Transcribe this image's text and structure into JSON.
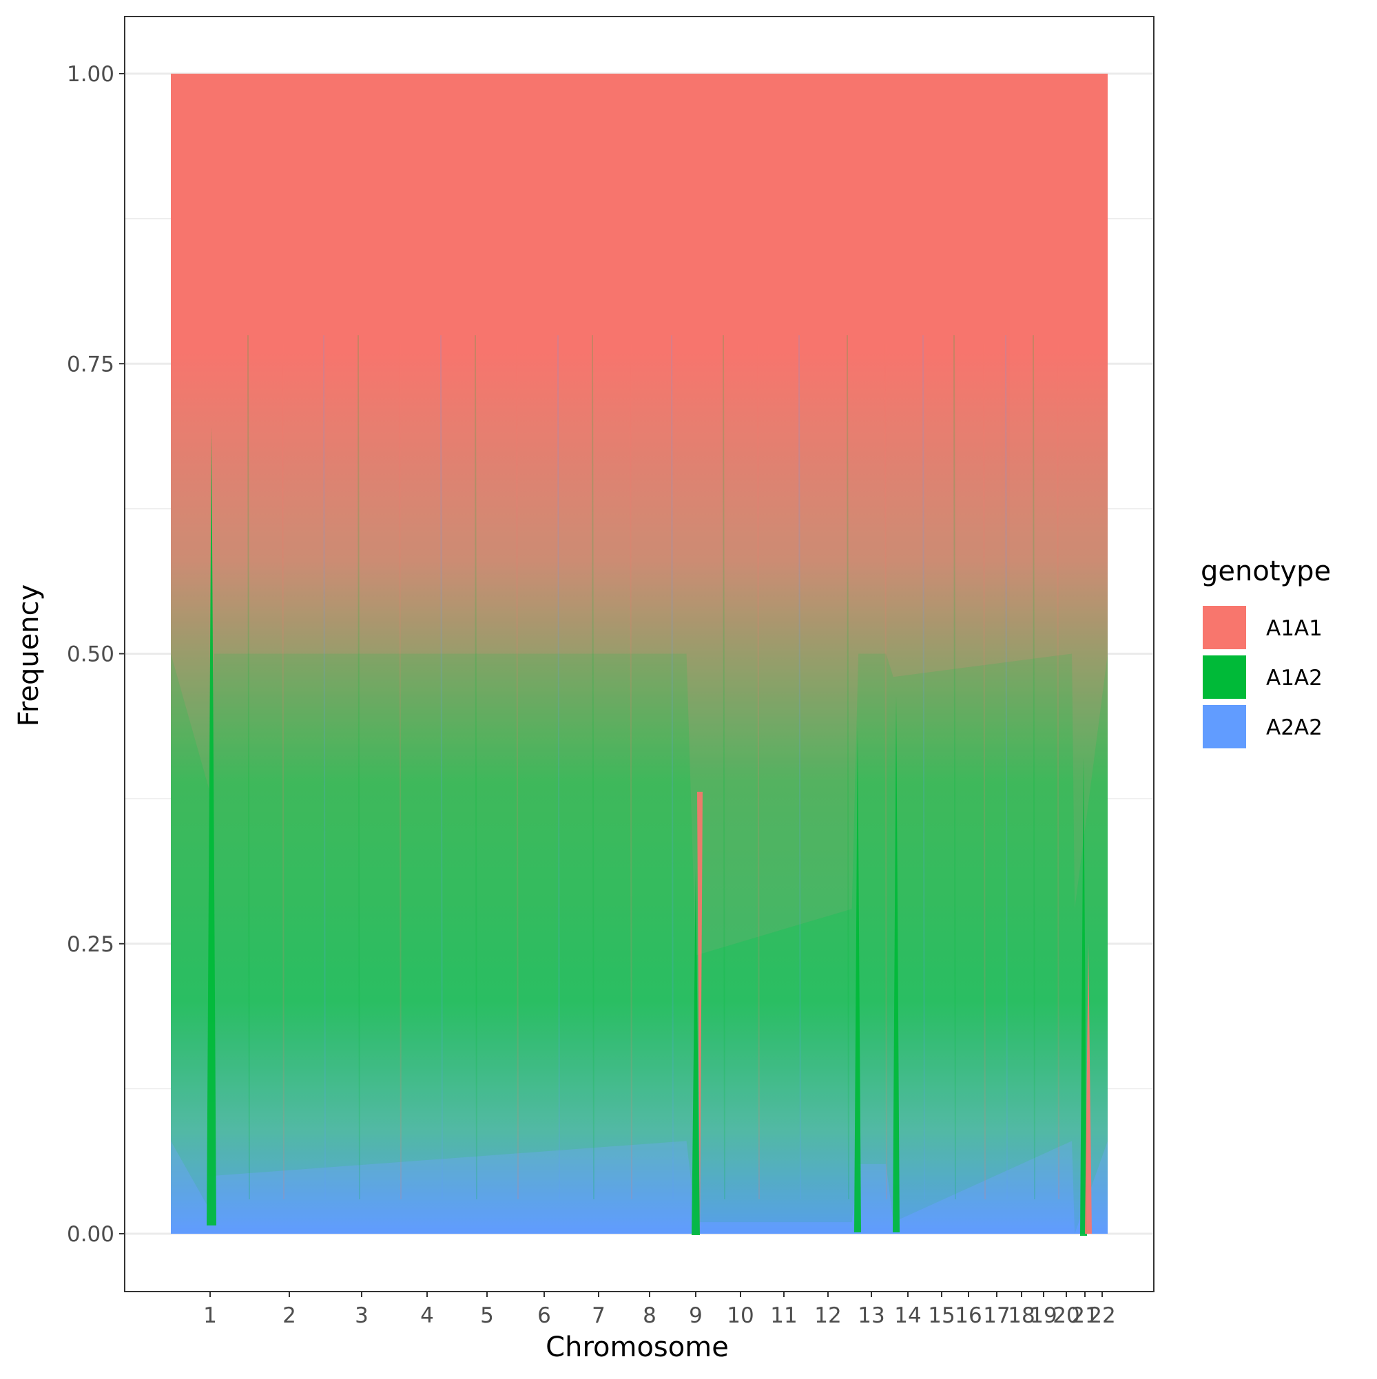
{
  "chart_data": {
    "type": "area",
    "xlabel": "Chromosome",
    "ylabel": "Frequency",
    "ylim": [
      -0.05,
      1.05
    ],
    "y_ticks": [
      "0.00",
      "0.25",
      "0.50",
      "0.75",
      "1.00"
    ],
    "y_tick_values": [
      0,
      0.25,
      0.5,
      0.75,
      1.0
    ],
    "x_tick_labels": [
      "1",
      "2",
      "3",
      "4",
      "5",
      "6",
      "7",
      "8",
      "9",
      "10",
      "11",
      "12",
      "13",
      "14",
      "15",
      "16",
      "17",
      "18",
      "19",
      "20",
      "21",
      "22"
    ],
    "x_tick_values": [
      1,
      2,
      3,
      4,
      5,
      6,
      7,
      8,
      9,
      10,
      11,
      12,
      13,
      14,
      15,
      16,
      17,
      18,
      19,
      20,
      21,
      22
    ],
    "stacking": "fill",
    "grid": true,
    "legend": {
      "title": "genotype",
      "position": "right"
    },
    "series": [
      {
        "name": "A1A1",
        "color": "#F8766D",
        "typical_share": 0.5,
        "x": [
          0.5,
          1.0,
          1.05,
          8.8,
          9.0,
          12.55,
          12.7,
          13.4,
          13.6,
          20.3,
          20.45,
          22.5
        ],
        "values": [
          0.5,
          0.62,
          0.5,
          0.5,
          0.76,
          0.72,
          0.5,
          0.5,
          0.52,
          0.5,
          0.72,
          0.5
        ]
      },
      {
        "name": "A1A2",
        "color": "#00BA38",
        "typical_share": 0.42,
        "x": [
          0.5,
          1.0,
          1.05,
          8.8,
          9.0,
          12.55,
          12.7,
          13.4,
          13.6,
          20.3,
          20.45,
          22.5
        ],
        "values": [
          0.42,
          0.36,
          0.45,
          0.42,
          0.23,
          0.27,
          0.44,
          0.44,
          0.47,
          0.42,
          0.28,
          0.42
        ]
      },
      {
        "name": "A2A2",
        "color": "#619CFF",
        "typical_share": 0.08,
        "x": [
          0.5,
          1.0,
          1.05,
          8.8,
          9.0,
          12.55,
          12.7,
          13.4,
          13.6,
          20.3,
          20.45,
          22.5
        ],
        "values": [
          0.08,
          0.02,
          0.05,
          0.08,
          0.01,
          0.01,
          0.06,
          0.06,
          0.01,
          0.08,
          0.0,
          0.08
        ]
      }
    ]
  }
}
